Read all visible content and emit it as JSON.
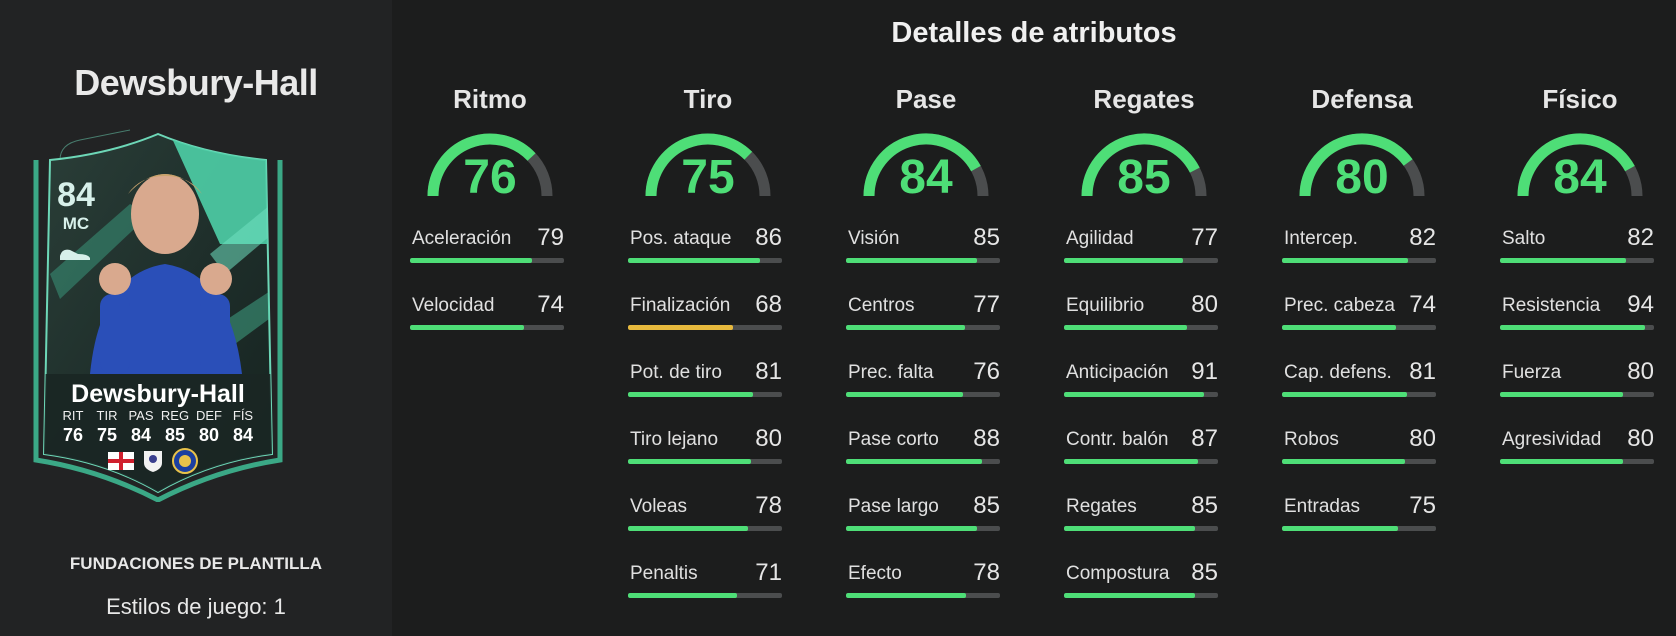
{
  "player": {
    "name": "Dewsbury-Hall",
    "card_name": "Dewsbury-Hall",
    "rating": "84",
    "position": "MC",
    "promo": "FUNDACIONES DE PLANTILLA",
    "playstyles": "Estilos de juego: 1",
    "card_stats": [
      {
        "label": "RIT",
        "value": "76"
      },
      {
        "label": "TIR",
        "value": "75"
      },
      {
        "label": "PAS",
        "value": "84"
      },
      {
        "label": "REG",
        "value": "85"
      },
      {
        "label": "DEF",
        "value": "80"
      },
      {
        "label": "FÍS",
        "value": "84"
      }
    ],
    "badges": [
      "england-flag-icon",
      "league-badge-icon",
      "club-crest-icon"
    ]
  },
  "page": {
    "title": "Detalles de atributos"
  },
  "colors": {
    "green": "#4ede77",
    "yellow": "#e7b93d",
    "track": "#4b4d4e",
    "card_accent": "#4ecfa7"
  },
  "categories": [
    {
      "title": "Ritmo",
      "value": 76,
      "stats": [
        {
          "name": "Aceleración",
          "value": 79
        },
        {
          "name": "Velocidad",
          "value": 74
        }
      ]
    },
    {
      "title": "Tiro",
      "value": 75,
      "stats": [
        {
          "name": "Pos. ataque",
          "value": 86
        },
        {
          "name": "Finalización",
          "value": 68
        },
        {
          "name": "Pot. de tiro",
          "value": 81
        },
        {
          "name": "Tiro lejano",
          "value": 80
        },
        {
          "name": "Voleas",
          "value": 78
        },
        {
          "name": "Penaltis",
          "value": 71
        }
      ]
    },
    {
      "title": "Pase",
      "value": 84,
      "stats": [
        {
          "name": "Visión",
          "value": 85
        },
        {
          "name": "Centros",
          "value": 77
        },
        {
          "name": "Prec. falta",
          "value": 76
        },
        {
          "name": "Pase corto",
          "value": 88
        },
        {
          "name": "Pase largo",
          "value": 85
        },
        {
          "name": "Efecto",
          "value": 78
        }
      ]
    },
    {
      "title": "Regates",
      "value": 85,
      "stats": [
        {
          "name": "Agilidad",
          "value": 77
        },
        {
          "name": "Equilibrio",
          "value": 80
        },
        {
          "name": "Anticipación",
          "value": 91
        },
        {
          "name": "Contr. balón",
          "value": 87
        },
        {
          "name": "Regates",
          "value": 85
        },
        {
          "name": "Compostura",
          "value": 85
        }
      ]
    },
    {
      "title": "Defensa",
      "value": 80,
      "stats": [
        {
          "name": "Intercep.",
          "value": 82
        },
        {
          "name": "Prec. cabeza",
          "value": 74
        },
        {
          "name": "Cap. defens.",
          "value": 81
        },
        {
          "name": "Robos",
          "value": 80
        },
        {
          "name": "Entradas",
          "value": 75
        }
      ]
    },
    {
      "title": "Físico",
      "value": 84,
      "stats": [
        {
          "name": "Salto",
          "value": 82
        },
        {
          "name": "Resistencia",
          "value": 94
        },
        {
          "name": "Fuerza",
          "value": 80
        },
        {
          "name": "Agresividad",
          "value": 80
        }
      ]
    }
  ]
}
